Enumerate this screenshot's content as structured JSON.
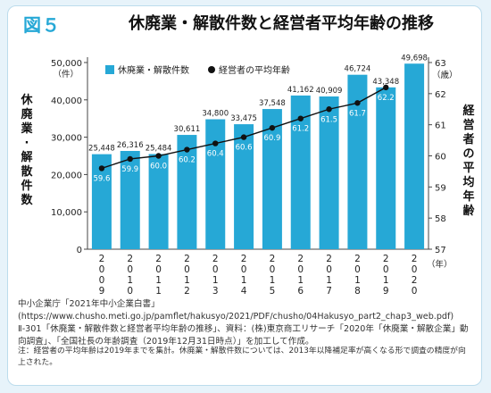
{
  "figure_label": "図５",
  "title": "休廃業・解散件数と経営者平均年齢の推移",
  "colors": {
    "bar": "#26a8d6",
    "line": "#111111",
    "axis": "#444444",
    "accent": "#26a8d6"
  },
  "chart_data": {
    "type": "bar",
    "categories": [
      "2009",
      "2010",
      "2011",
      "2012",
      "2013",
      "2014",
      "2015",
      "2016",
      "2017",
      "2018",
      "2019",
      "2020"
    ],
    "year_unit": "（年）",
    "series": [
      {
        "name": "休廃業・解散件数",
        "type": "bar",
        "axis": "left",
        "values": [
          25448,
          26316,
          25484,
          30611,
          34800,
          33475,
          37548,
          41162,
          40909,
          46724,
          43348,
          49698
        ],
        "labels": [
          "25,448",
          "26,316",
          "25,484",
          "30,611",
          "34,800",
          "33,475",
          "37,548",
          "41,162",
          "40,909",
          "46,724",
          "43,348",
          "49,698"
        ]
      },
      {
        "name": "経営者の平均年齢",
        "type": "line",
        "axis": "right",
        "values": [
          59.6,
          59.9,
          60.0,
          60.2,
          60.4,
          60.6,
          60.9,
          61.2,
          61.5,
          61.7,
          62.2,
          null
        ],
        "labels": [
          "59.6",
          "59.9",
          "60.0",
          "60.2",
          "60.4",
          "60.6",
          "60.9",
          "61.2",
          "61.5",
          "61.7",
          "62.2",
          ""
        ]
      }
    ],
    "y_left": {
      "label": "休廃業・解散件数",
      "unit": "（件）",
      "ylim": [
        0,
        50000
      ],
      "ticks": [
        0,
        10000,
        20000,
        30000,
        40000,
        50000
      ],
      "tick_labels": [
        "0",
        "10,000",
        "20,000",
        "30,000",
        "40,000",
        "50,000"
      ]
    },
    "y_right": {
      "label": "経営者の平均年齢",
      "unit": "（歳）",
      "ylim": [
        57,
        63
      ],
      "ticks": [
        57,
        58,
        59,
        60,
        61,
        62,
        63
      ],
      "tick_labels": [
        "57",
        "58",
        "59",
        "60",
        "61",
        "62",
        "63"
      ]
    },
    "legend_position": "top-left",
    "grid": false
  },
  "source_text": "中小企業庁「2021年中小企業白書」(https://www.chusho.meti.go.jp/pamflet/hakusyo/2021/PDF/chusho/04Hakusyo_part2_chap3_web.pdf) Ⅱ-301「休廃業・解散件数と経営者平均年齢の推移」、資料：(株)東京商工リサーチ「2020年「休廃業・解散企業」動向調査」、「全国社長の年齢調査（2019年12月31日時点）」を加工して作成。",
  "note_text": "注：経営者の平均年齢は2019年までを集計。休廃業・解散件数については、2013年以降補足率が高くなる形で調査の精度が向上された。"
}
